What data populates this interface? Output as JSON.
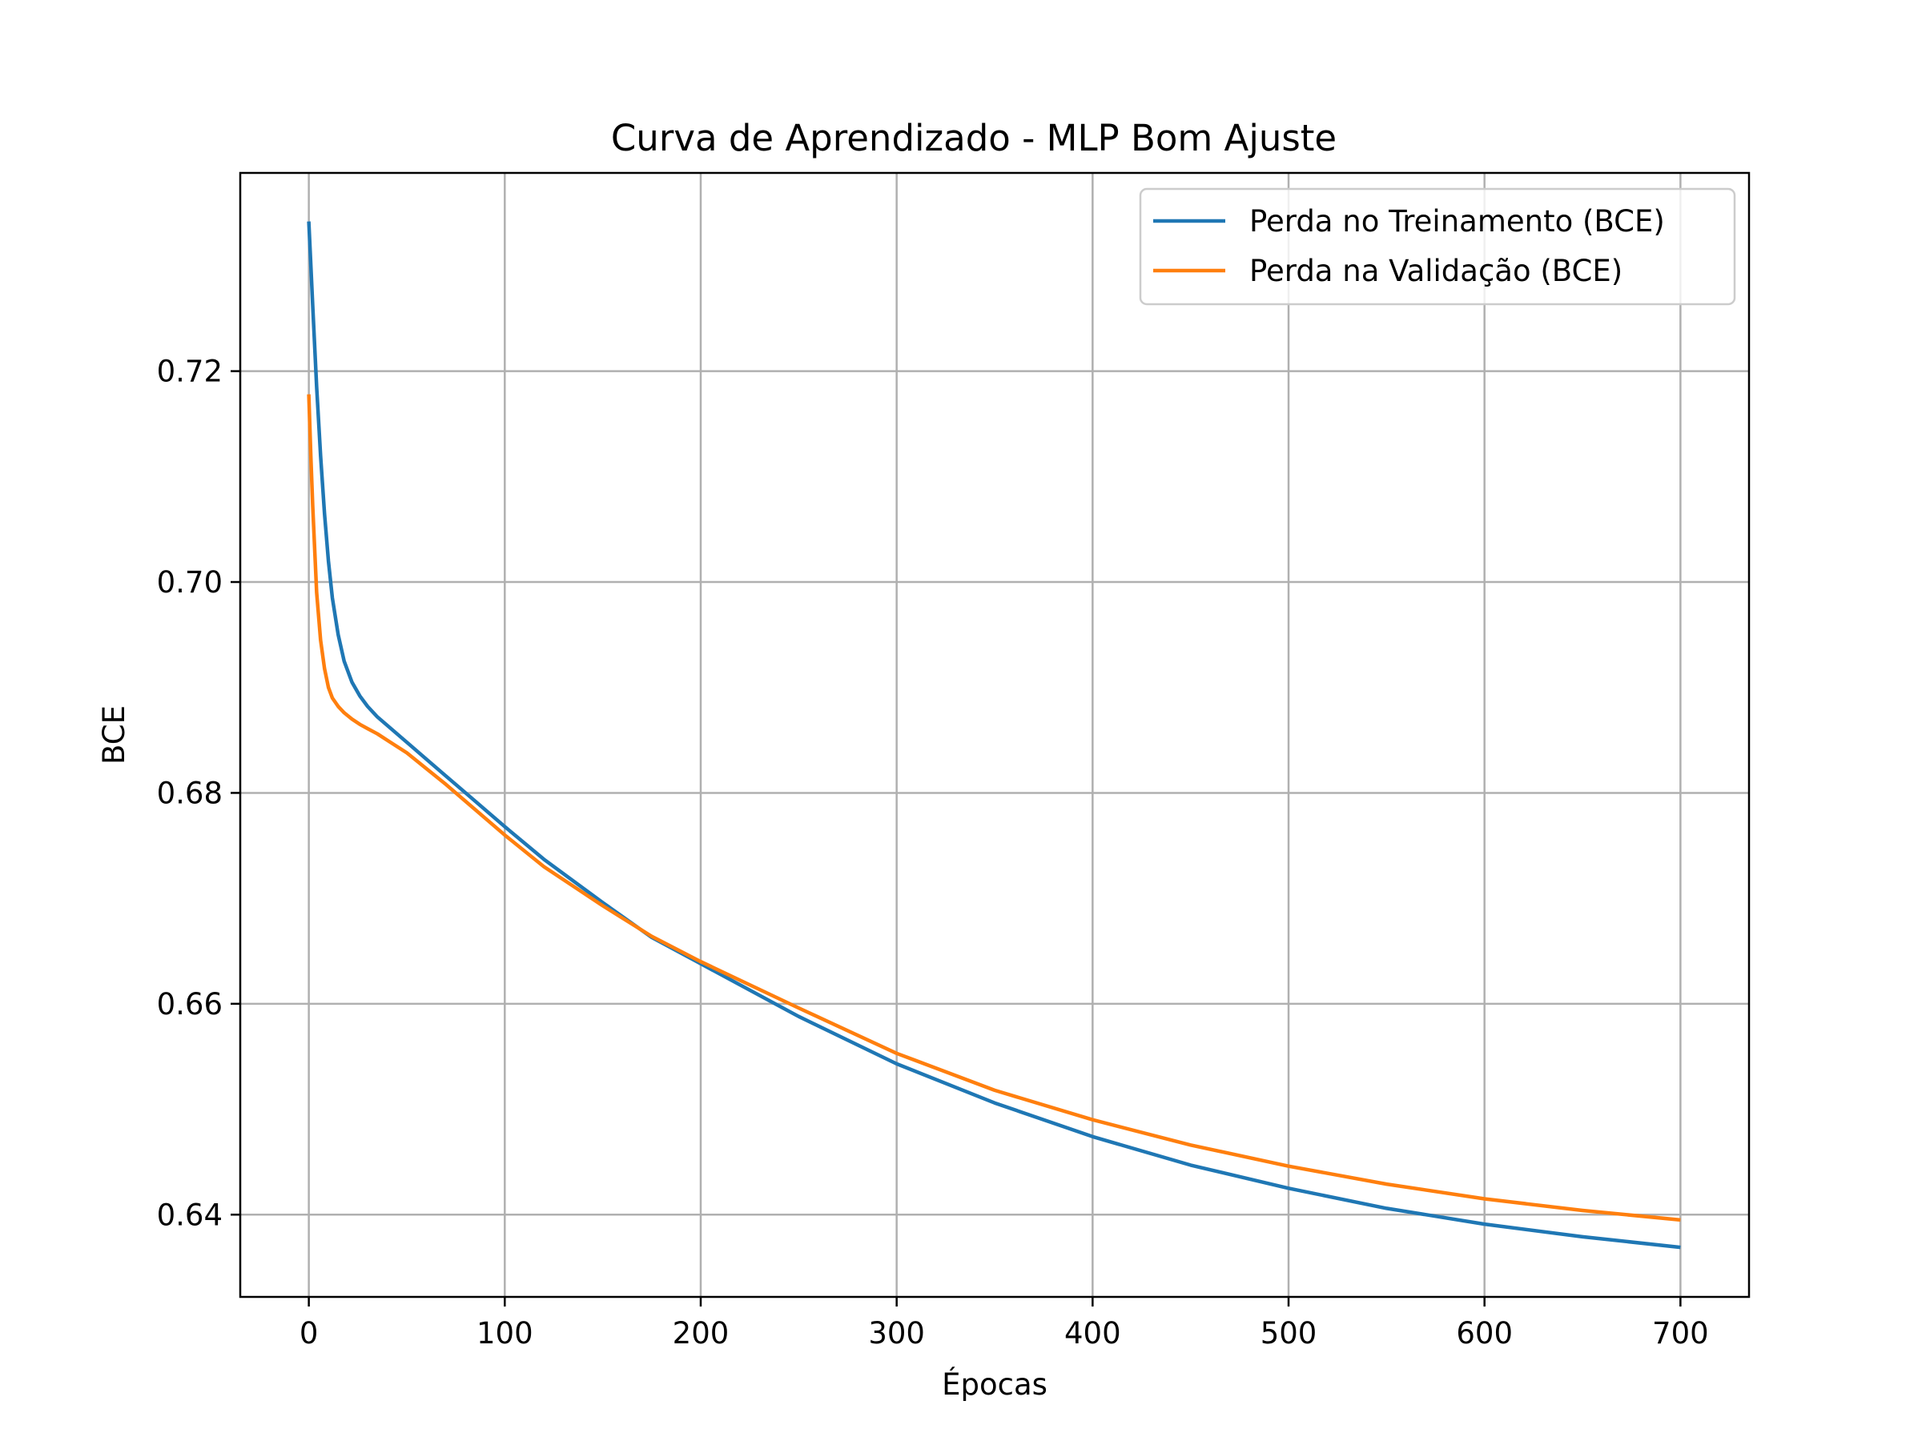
{
  "chart_data": {
    "type": "line",
    "title": "Curva de Aprendizado - MLP Bom Ajuste",
    "xlabel": "Épocas",
    "ylabel": "BCE",
    "xlim": [
      -35,
      735
    ],
    "ylim": [
      0.6322,
      0.7388
    ],
    "xticks": [
      0,
      100,
      200,
      300,
      400,
      500,
      600,
      700
    ],
    "yticks": [
      0.64,
      0.66,
      0.68,
      0.7,
      0.72
    ],
    "xtick_labels": [
      "0",
      "100",
      "200",
      "300",
      "400",
      "500",
      "600",
      "700"
    ],
    "ytick_labels": [
      "0.64",
      "0.66",
      "0.68",
      "0.70",
      "0.72"
    ],
    "grid": true,
    "legend_position": "top-right",
    "series": [
      {
        "name": "Perda no Treinamento (BCE)",
        "color": "#1f77b4",
        "x": [
          0,
          2,
          4,
          6,
          8,
          10,
          12,
          15,
          18,
          22,
          26,
          30,
          35,
          40,
          50,
          60,
          70,
          80,
          100,
          120,
          150,
          175,
          200,
          250,
          300,
          350,
          400,
          450,
          500,
          550,
          600,
          650,
          700
        ],
        "y": [
          0.7342,
          0.7262,
          0.7185,
          0.712,
          0.7065,
          0.702,
          0.6985,
          0.695,
          0.6925,
          0.6905,
          0.6892,
          0.6882,
          0.6872,
          0.6864,
          0.6848,
          0.6832,
          0.6816,
          0.68,
          0.6768,
          0.6737,
          0.6696,
          0.6663,
          0.6638,
          0.6588,
          0.6543,
          0.6506,
          0.6474,
          0.6447,
          0.6425,
          0.6406,
          0.6391,
          0.6379,
          0.6369
        ]
      },
      {
        "name": "Perda na Validação (BCE)",
        "color": "#ff7f0e",
        "x": [
          0,
          1,
          2,
          4,
          6,
          8,
          10,
          12,
          15,
          18,
          22,
          26,
          30,
          35,
          40,
          50,
          60,
          70,
          80,
          100,
          120,
          150,
          175,
          200,
          250,
          300,
          350,
          400,
          450,
          500,
          550,
          600,
          650,
          700
        ],
        "y": [
          0.7178,
          0.712,
          0.7072,
          0.699,
          0.6945,
          0.6918,
          0.69,
          0.689,
          0.6882,
          0.6876,
          0.687,
          0.6865,
          0.6861,
          0.6856,
          0.685,
          0.6838,
          0.6823,
          0.6808,
          0.6792,
          0.676,
          0.673,
          0.6693,
          0.6664,
          0.664,
          0.6596,
          0.6553,
          0.6518,
          0.649,
          0.6466,
          0.6446,
          0.6429,
          0.6415,
          0.6404,
          0.6395
        ]
      }
    ]
  }
}
